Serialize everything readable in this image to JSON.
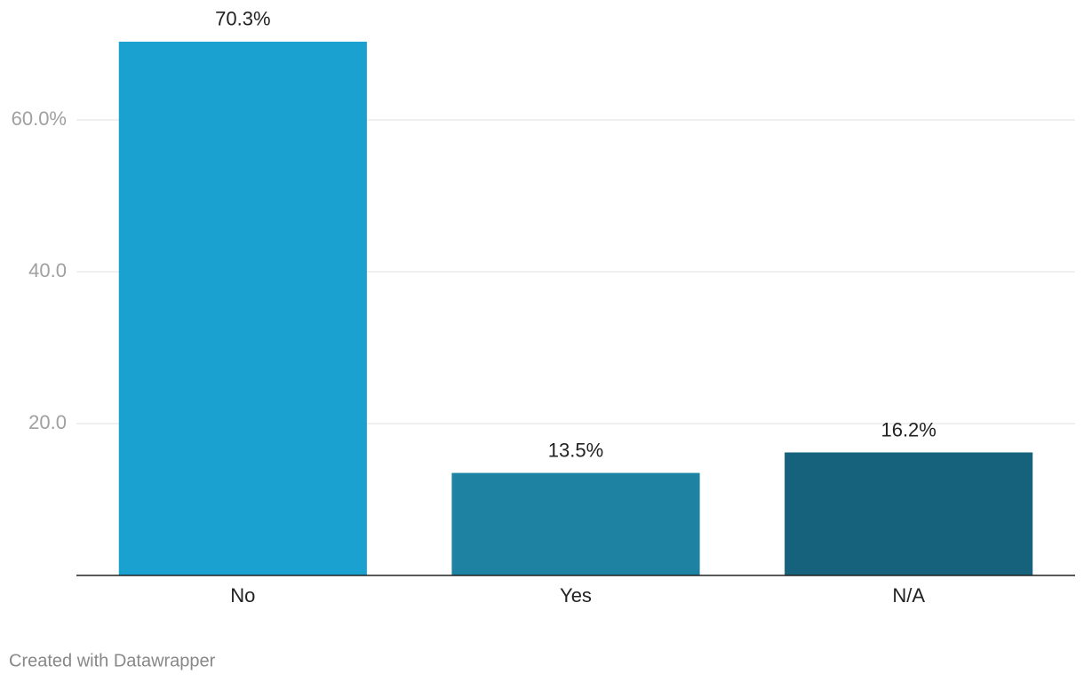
{
  "chart_data": {
    "type": "bar",
    "categories": [
      "No",
      "Yes",
      "N/A"
    ],
    "values": [
      70.3,
      13.5,
      16.2
    ],
    "value_labels": [
      "70.3%",
      "13.5%",
      "16.2%"
    ],
    "colors": [
      "#1aa1cf",
      "#1e82a2",
      "#16627c"
    ],
    "ylim": [
      0,
      75
    ],
    "yticks": [
      {
        "value": 20,
        "label": "20.0"
      },
      {
        "value": 40,
        "label": "40.0"
      },
      {
        "value": 60,
        "label": "60.0%"
      }
    ],
    "grid": true,
    "credit": "Created with Datawrapper"
  }
}
